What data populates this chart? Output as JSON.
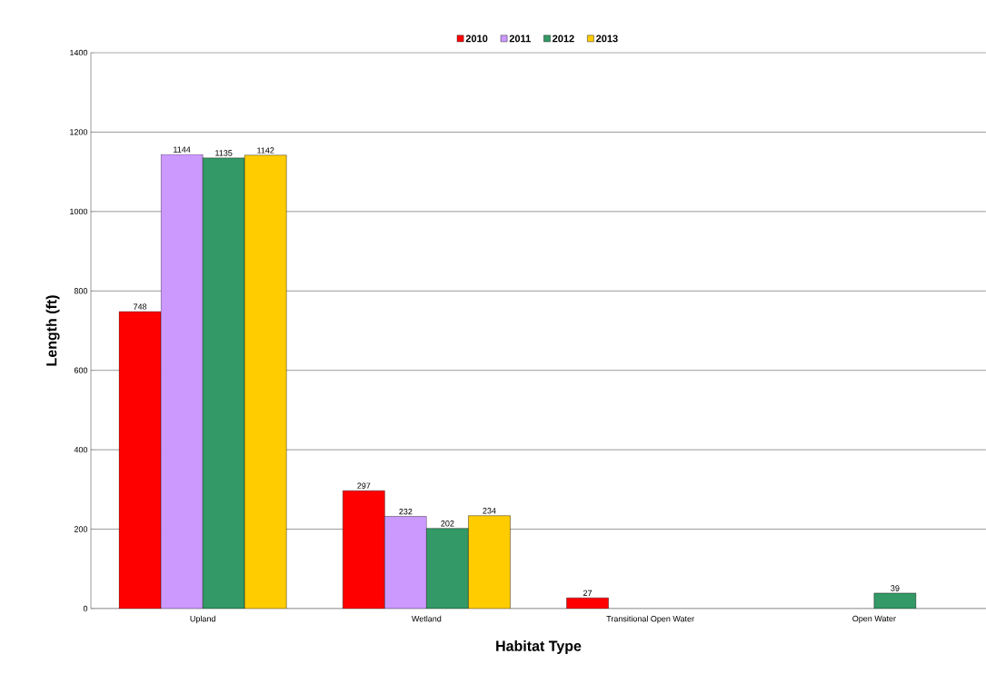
{
  "chart_data": {
    "type": "bar",
    "xlabel": "Habitat Type",
    "ylabel": "Length (ft)",
    "categories": [
      "Upland",
      "Wetland",
      "Transitional Open Water",
      "Open Water"
    ],
    "series": [
      {
        "name": "2010",
        "color": "#ff0000",
        "values": [
          748,
          297,
          27,
          null
        ]
      },
      {
        "name": "2011",
        "color": "#cc99ff",
        "values": [
          1144,
          232,
          null,
          null
        ]
      },
      {
        "name": "2012",
        "color": "#339966",
        "values": [
          1135,
          202,
          null,
          39
        ]
      },
      {
        "name": "2013",
        "color": "#ffcc00",
        "values": [
          1142,
          234,
          null,
          null
        ]
      }
    ],
    "ylim": [
      0,
      1400
    ],
    "yticks": [
      0,
      200,
      400,
      600,
      800,
      1000,
      1200,
      1400
    ],
    "grid": "y",
    "legend": "top",
    "data_labels": true
  }
}
